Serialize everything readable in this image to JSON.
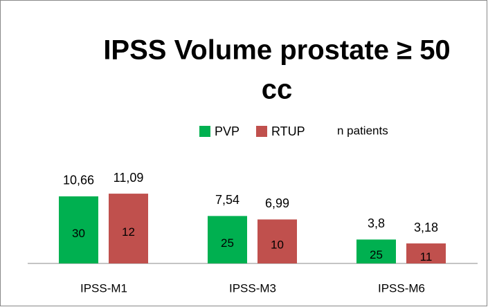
{
  "chart_data": {
    "type": "bar",
    "title": [
      "IPSS Volume prostate ≥ 50",
      "cc"
    ],
    "categories": [
      "IPSS-M1",
      "IPSS-M3",
      "IPSS-M6"
    ],
    "counts_label": "n patients",
    "series": [
      {
        "name": "PVP",
        "color": "#00b050",
        "values": [
          10.66,
          7.54,
          3.8
        ],
        "value_labels": [
          "10,66",
          "7,54",
          "3,8"
        ],
        "counts": [
          30,
          25,
          25
        ]
      },
      {
        "name": "RTUP",
        "color": "#c0504d",
        "values": [
          11.09,
          6.99,
          3.18
        ],
        "value_labels": [
          "11,09",
          "6,99",
          "3,18"
        ],
        "counts": [
          12,
          10,
          11
        ]
      }
    ]
  }
}
